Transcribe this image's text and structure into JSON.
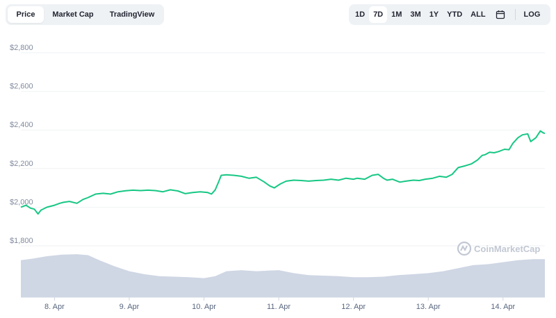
{
  "tabs": [
    {
      "label": "Price",
      "active": true
    },
    {
      "label": "Market Cap",
      "active": false
    },
    {
      "label": "TradingView",
      "active": false
    }
  ],
  "ranges": {
    "items": [
      {
        "label": "1D",
        "active": false
      },
      {
        "label": "7D",
        "active": true
      },
      {
        "label": "1M",
        "active": false
      },
      {
        "label": "3M",
        "active": false
      },
      {
        "label": "1Y",
        "active": false
      },
      {
        "label": "YTD",
        "active": false
      },
      {
        "label": "ALL",
        "active": false
      }
    ],
    "calendar_icon": "calendar-icon",
    "log_label": "LOG"
  },
  "watermark": {
    "text": "CoinMarketCap",
    "icon": "coinmarketcap-logo-icon"
  },
  "colors": {
    "line": "#16c784",
    "volume": "#cfd6e4",
    "grid": "#eff2f5",
    "tab_bg": "#eff2f5"
  },
  "chart_data": {
    "type": "line",
    "title": "",
    "xlabel": "",
    "ylabel": "",
    "ylim": [
      1800,
      2800
    ],
    "y_ticks": [
      {
        "value": 1800,
        "label": "$1,800"
      },
      {
        "value": 2000,
        "label": "$2,000"
      },
      {
        "value": 2200,
        "label": "$2,200"
      },
      {
        "value": 2400,
        "label": "$2,400"
      },
      {
        "value": 2600,
        "label": "$2,600"
      },
      {
        "value": 2800,
        "label": "$2,800"
      }
    ],
    "xlim": [
      7.55,
      14.56
    ],
    "x_ticks": [
      {
        "value": 8,
        "label": "8. Apr"
      },
      {
        "value": 9,
        "label": "9. Apr"
      },
      {
        "value": 10,
        "label": "10. Apr"
      },
      {
        "value": 11,
        "label": "11. Apr"
      },
      {
        "value": 12,
        "label": "12. Apr"
      },
      {
        "value": 13,
        "label": "13. Apr"
      },
      {
        "value": 14,
        "label": "14. Apr"
      }
    ],
    "grid": true,
    "series": [
      {
        "points": [
          [
            7.55,
            2000
          ],
          [
            7.62,
            2010
          ],
          [
            7.68,
            1995
          ],
          [
            7.73,
            1990
          ],
          [
            7.78,
            1965
          ],
          [
            7.82,
            1985
          ],
          [
            7.9,
            2000
          ],
          [
            8.0,
            2010
          ],
          [
            8.07,
            2020
          ],
          [
            8.12,
            2025
          ],
          [
            8.2,
            2030
          ],
          [
            8.3,
            2020
          ],
          [
            8.38,
            2040
          ],
          [
            8.45,
            2050
          ],
          [
            8.55,
            2068
          ],
          [
            8.65,
            2072
          ],
          [
            8.75,
            2068
          ],
          [
            8.85,
            2080
          ],
          [
            8.95,
            2085
          ],
          [
            9.05,
            2088
          ],
          [
            9.15,
            2086
          ],
          [
            9.25,
            2088
          ],
          [
            9.35,
            2086
          ],
          [
            9.45,
            2080
          ],
          [
            9.55,
            2090
          ],
          [
            9.65,
            2084
          ],
          [
            9.75,
            2070
          ],
          [
            9.85,
            2076
          ],
          [
            9.95,
            2080
          ],
          [
            10.05,
            2076
          ],
          [
            10.1,
            2068
          ],
          [
            10.15,
            2090
          ],
          [
            10.2,
            2135
          ],
          [
            10.23,
            2165
          ],
          [
            10.3,
            2168
          ],
          [
            10.4,
            2165
          ],
          [
            10.5,
            2160
          ],
          [
            10.6,
            2150
          ],
          [
            10.7,
            2155
          ],
          [
            10.8,
            2132
          ],
          [
            10.88,
            2110
          ],
          [
            10.94,
            2100
          ],
          [
            11.02,
            2120
          ],
          [
            11.1,
            2135
          ],
          [
            11.2,
            2140
          ],
          [
            11.3,
            2138
          ],
          [
            11.4,
            2135
          ],
          [
            11.5,
            2138
          ],
          [
            11.6,
            2140
          ],
          [
            11.7,
            2145
          ],
          [
            11.8,
            2140
          ],
          [
            11.9,
            2150
          ],
          [
            12.0,
            2145
          ],
          [
            12.05,
            2150
          ],
          [
            12.15,
            2145
          ],
          [
            12.25,
            2165
          ],
          [
            12.33,
            2170
          ],
          [
            12.4,
            2150
          ],
          [
            12.45,
            2140
          ],
          [
            12.52,
            2145
          ],
          [
            12.62,
            2130
          ],
          [
            12.7,
            2135
          ],
          [
            12.8,
            2140
          ],
          [
            12.88,
            2138
          ],
          [
            12.96,
            2145
          ],
          [
            13.06,
            2150
          ],
          [
            13.15,
            2160
          ],
          [
            13.24,
            2155
          ],
          [
            13.32,
            2170
          ],
          [
            13.4,
            2205
          ],
          [
            13.5,
            2215
          ],
          [
            13.58,
            2225
          ],
          [
            13.66,
            2245
          ],
          [
            13.72,
            2268
          ],
          [
            13.76,
            2272
          ],
          [
            13.82,
            2285
          ],
          [
            13.88,
            2282
          ],
          [
            13.94,
            2288
          ],
          [
            14.02,
            2300
          ],
          [
            14.08,
            2298
          ],
          [
            14.13,
            2330
          ],
          [
            14.2,
            2360
          ],
          [
            14.26,
            2375
          ],
          [
            14.33,
            2380
          ],
          [
            14.37,
            2340
          ],
          [
            14.44,
            2360
          ],
          [
            14.5,
            2395
          ],
          [
            14.54,
            2385
          ],
          [
            14.56,
            2382
          ]
        ]
      }
    ],
    "volume": {
      "points": [
        [
          7.55,
          0.74
        ],
        [
          7.7,
          0.77
        ],
        [
          7.9,
          0.82
        ],
        [
          8.1,
          0.85
        ],
        [
          8.3,
          0.86
        ],
        [
          8.45,
          0.84
        ],
        [
          8.6,
          0.74
        ],
        [
          8.8,
          0.62
        ],
        [
          9.0,
          0.52
        ],
        [
          9.2,
          0.46
        ],
        [
          9.4,
          0.42
        ],
        [
          9.6,
          0.41
        ],
        [
          9.8,
          0.4
        ],
        [
          10.0,
          0.38
        ],
        [
          10.15,
          0.42
        ],
        [
          10.3,
          0.52
        ],
        [
          10.5,
          0.54
        ],
        [
          10.7,
          0.52
        ],
        [
          10.85,
          0.53
        ],
        [
          11.0,
          0.54
        ],
        [
          11.2,
          0.48
        ],
        [
          11.4,
          0.44
        ],
        [
          11.6,
          0.43
        ],
        [
          11.8,
          0.42
        ],
        [
          12.0,
          0.4
        ],
        [
          12.2,
          0.4
        ],
        [
          12.4,
          0.41
        ],
        [
          12.6,
          0.44
        ],
        [
          12.8,
          0.46
        ],
        [
          13.0,
          0.48
        ],
        [
          13.2,
          0.52
        ],
        [
          13.4,
          0.58
        ],
        [
          13.6,
          0.64
        ],
        [
          13.8,
          0.66
        ],
        [
          14.0,
          0.7
        ],
        [
          14.2,
          0.74
        ],
        [
          14.4,
          0.76
        ],
        [
          14.56,
          0.76
        ]
      ]
    }
  }
}
